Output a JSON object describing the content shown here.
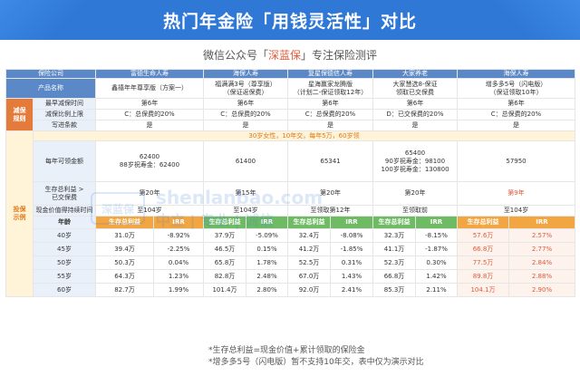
{
  "banner": {
    "title": "热门年金险「用钱灵活性」对比"
  },
  "subtitle": {
    "prefix": "微信公众号「",
    "brand": "深蓝保",
    "suffix": "」专注保险测评"
  },
  "header": {
    "company_label": "保险公司",
    "companies": [
      "富德生命人寿",
      "海保人寿",
      "复星保德信人寿",
      "大家养老",
      "海保人寿"
    ],
    "product_label": "产品名称",
    "products": [
      "鑫禧年年尊享版（方案一）",
      "福满满3号（尊享版）\n（保证返保费）",
      "星海赢家龙腾版\n（计划二-保证领取12年）",
      "大家慧选8-保证\n领取已交保费",
      "增多多5号（闪电版）\n（保证领取10年）"
    ]
  },
  "section_reduce": {
    "label": "减保\n规则",
    "rows": [
      {
        "label": "最早减保时间",
        "values": [
          "第6年",
          "第6年",
          "第6年",
          "第6年",
          "第6年"
        ]
      },
      {
        "label": "减保比例上限",
        "values": [
          "C：总保费的20%",
          "C：总保费的20%",
          "C：总保费的20%",
          "D：已交保费的20%",
          "C：总保费的20%"
        ]
      },
      {
        "label": "写进条款",
        "values": [
          "是",
          "是",
          "是",
          "是",
          "是"
        ]
      }
    ]
  },
  "section_investment": {
    "label": "投保\n示例",
    "band": "30岁女性，10年交，每年5万，60岁领",
    "yearly_label": "每年可领金额",
    "yearly": [
      "62400\n88岁祝寿金：62400",
      "61400",
      "65341",
      "65400\n90岁祝寿金：98100\n100岁祝寿金：130800",
      "57950"
    ],
    "survival_label": "生存总利益 >\n已交保费",
    "survival": [
      "第20年",
      "第15年",
      "第20年",
      "第20年",
      "第9年"
    ],
    "cashvalue_label": "现金价值得持续时间",
    "cashvalue": [
      "至104岁",
      "至104岁",
      "至领取第12年",
      "至领取前",
      "至104岁"
    ],
    "age_label": "年龄",
    "col_labels": [
      "生存总利益",
      "IRR"
    ],
    "ages": [
      "40岁",
      "45岁",
      "50岁",
      "55岁",
      "60岁"
    ],
    "table": [
      [
        [
          "31.0万",
          "-8.92%"
        ],
        [
          "37.9万",
          "-5.09%"
        ],
        [
          "32.4万",
          "-8.08%"
        ],
        [
          "32.3万",
          "-8.15%"
        ],
        [
          "57.6万",
          "2.57%"
        ]
      ],
      [
        [
          "39.4万",
          "-2.25%"
        ],
        [
          "46.5万",
          "0.15%"
        ],
        [
          "41.2万",
          "-1.85%"
        ],
        [
          "41.1万",
          "-1.87%"
        ],
        [
          "66.8万",
          "2.77%"
        ]
      ],
      [
        [
          "50.3万",
          "0.04%"
        ],
        [
          "65.8万",
          "1.78%"
        ],
        [
          "52.5万",
          "0.31%"
        ],
        [
          "52.3万",
          "0.30%"
        ],
        [
          "77.5万",
          "2.84%"
        ]
      ],
      [
        [
          "64.3万",
          "1.23%"
        ],
        [
          "82.8万",
          "2.48%"
        ],
        [
          "67.0万",
          "1.43%"
        ],
        [
          "66.8万",
          "1.42%"
        ],
        [
          "89.8万",
          "2.88%"
        ]
      ],
      [
        [
          "82.7万",
          "1.99%"
        ],
        [
          "101.4万",
          "2.80%"
        ],
        [
          "92.0万",
          "2.41%"
        ],
        [
          "85.3万",
          "2.11%"
        ],
        [
          "104.1万",
          "2.90%"
        ]
      ]
    ]
  },
  "watermark": {
    "badge": "深蓝保",
    "domain": "shenlanbao.com",
    "slogan": "中立 | 专业 | 诚信"
  },
  "notes": [
    "*生存总利益=现金价值+累计领取的保险金",
    "*增多多5号（闪电版）暂不支持10年交，表中仅为演示对比"
  ]
}
